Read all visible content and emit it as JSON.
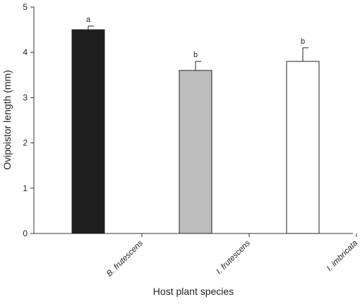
{
  "chart_data": {
    "type": "bar",
    "title": "",
    "xlabel": "Host plant species",
    "ylabel": "Ovipoistor length (mm)",
    "ylim": [
      0,
      5
    ],
    "yticks": [
      "0",
      "1",
      "2",
      "3",
      "4",
      "5"
    ],
    "grid": false,
    "categories": [
      "B. frutescens",
      "I. frutescens",
      "I. imbricata"
    ],
    "values": [
      4.5,
      3.6,
      3.8
    ],
    "errors": [
      0.08,
      0.2,
      0.3
    ],
    "significance_letters": [
      "a",
      "b",
      "b"
    ],
    "bar_colors": [
      "#1e1e1e",
      "#bdbdbd",
      "#ffffff"
    ]
  }
}
